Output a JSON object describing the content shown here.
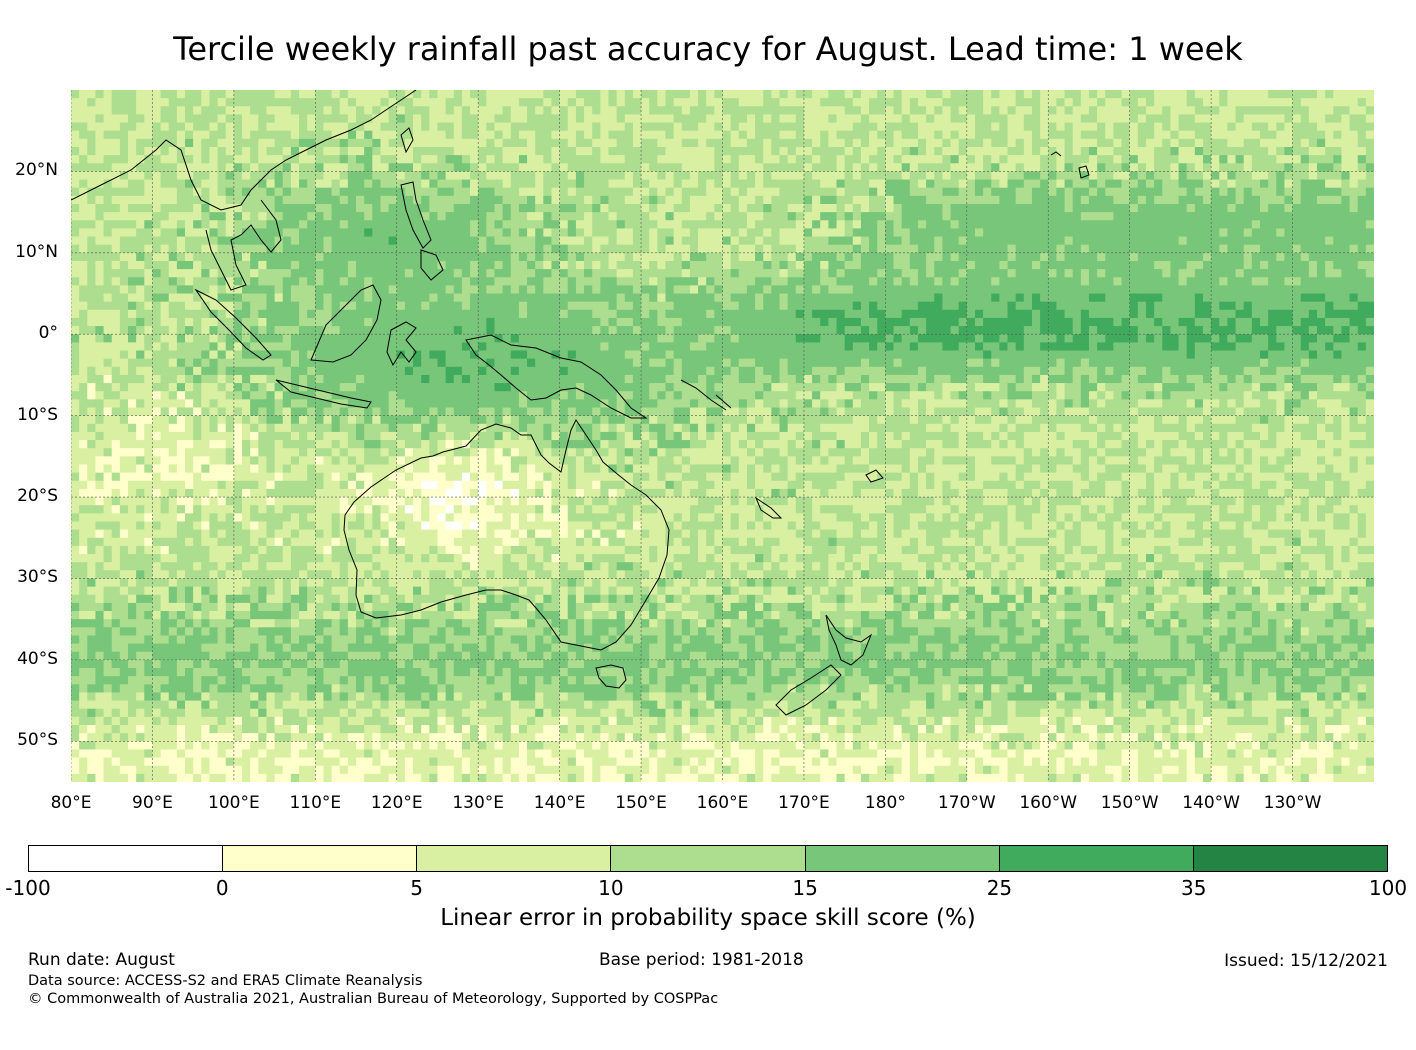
{
  "title": "Tercile weekly rainfall past accuracy for August. Lead time: 1 week",
  "map": {
    "lat_labels": [
      "20°N",
      "10°N",
      "0°",
      "10°S",
      "20°S",
      "30°S",
      "40°S",
      "50°S"
    ],
    "lon_labels": [
      "80°E",
      "90°E",
      "100°E",
      "110°E",
      "120°E",
      "130°E",
      "140°E",
      "150°E",
      "160°E",
      "170°E",
      "180°",
      "170°W",
      "160°W",
      "150°W",
      "140°W",
      "130°W"
    ],
    "extent": {
      "lon": [
        80,
        240
      ],
      "lat": [
        -55,
        30
      ]
    },
    "colors": [
      "#ffffff",
      "#ffffcc",
      "#d9f0a3",
      "#addd8e",
      "#78c679",
      "#41ab5d",
      "#238443"
    ]
  },
  "colorbar": {
    "ticks": [
      "-100",
      "0",
      "5",
      "10",
      "15",
      "25",
      "35",
      "100"
    ],
    "label": "Linear error in probability space skill score (%)"
  },
  "footer": {
    "run_date": "Run date: August",
    "base_period": "Base period: 1981-2018",
    "issued": "Issued: 15/12/2021",
    "data_source": "Data source: ACCESS-S2 and ERA5 Climate Reanalysis",
    "copyright": "© Commonwealth of Australia 2021, Australian Bureau of Meteorology, Supported by COSPPac"
  }
}
